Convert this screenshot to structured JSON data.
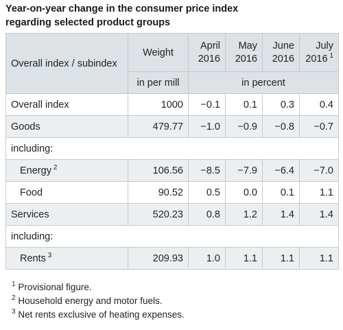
{
  "title": {
    "line1": "Year-on-year change in the consumer price index",
    "line2": "regarding selected product groups"
  },
  "table": {
    "header": {
      "subindex_label": "Overall index / subindex",
      "weight_label": "Weight",
      "months": [
        {
          "month": "April",
          "year": "2016",
          "footnote": ""
        },
        {
          "month": "May",
          "year": "2016",
          "footnote": ""
        },
        {
          "month": "June",
          "year": "2016",
          "footnote": ""
        },
        {
          "month": "July",
          "year": "2016",
          "footnote": "1"
        }
      ],
      "weight_unit": "in per mill",
      "percent_unit": "in percent"
    },
    "rows": [
      {
        "label": "Overall index",
        "footnote": "",
        "weight": "1000",
        "values": [
          "−0.1",
          "0.1",
          "0.3",
          "0.4"
        ]
      },
      {
        "label": "Goods",
        "footnote": "",
        "weight": "479.77",
        "values": [
          "−1.0",
          "−0.9",
          "−0.8",
          "−0.7"
        ]
      },
      {
        "label": "including:"
      },
      {
        "label": "Energy",
        "footnote": "2",
        "weight": "106.56",
        "values": [
          "−8.5",
          "−7.9",
          "−6.4",
          "−7.0"
        ]
      },
      {
        "label": "Food",
        "footnote": "",
        "weight": "90.52",
        "values": [
          "0.5",
          "0.0",
          "0.1",
          "1.1"
        ]
      },
      {
        "label": "Services",
        "footnote": "",
        "weight": "520.23",
        "values": [
          "0.8",
          "1.2",
          "1.4",
          "1.4"
        ]
      },
      {
        "label": "including:"
      },
      {
        "label": "Rents",
        "footnote": "3",
        "weight": "209.93",
        "values": [
          "1.0",
          "1.1",
          "1.1",
          "1.1"
        ]
      }
    ]
  },
  "footnotes": [
    {
      "mark": "1",
      "text": "Provisional figure."
    },
    {
      "mark": "2",
      "text": "Household energy and motor fuels."
    },
    {
      "mark": "3",
      "text": "Net rents exclusive of heating expenses."
    }
  ]
}
